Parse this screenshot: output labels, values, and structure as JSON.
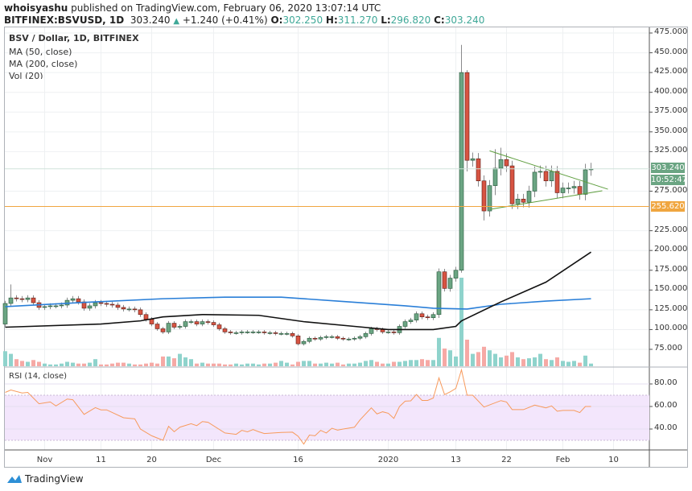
{
  "header": {
    "user": "whoisyashu",
    "published": "published on TradingView.com, February 06, 2020 13:07:14 UTC",
    "symbol": "BITFINEX:BSVUSD, 1D",
    "last": "303.240",
    "change": "+1.240 (+0.41%)",
    "o_label": "O:",
    "o": "302.250",
    "h_label": "H:",
    "h": "311.270",
    "l_label": "L:",
    "l": "296.820",
    "c_label": "C:",
    "c": "303.240"
  },
  "legend": {
    "title": "BSV / Dollar, 1D, BITFINEX",
    "ma50": "MA (50, close)",
    "ma200": "MA (200, close)",
    "vol": "Vol (20)",
    "rsi": "RSI (14, close)"
  },
  "badges": {
    "price": "303.240",
    "countdown": "10:52:47",
    "level": "255.620"
  },
  "footer": {
    "brand": "TradingView"
  },
  "colors": {
    "up": "#6ba583",
    "down": "#d75442",
    "ma50": "#111111",
    "ma200": "#2a7fd8",
    "rsi": "#f79a5c",
    "level": "#f0a640",
    "trendline": "#5e9e3e",
    "rsi_band": "#f3e6fc"
  },
  "chart_data": {
    "type": "candlestick",
    "start_date": "2019-10-25",
    "first_open": 107,
    "closes": [
      133,
      140,
      139,
      138,
      140,
      134,
      128,
      129,
      130,
      130,
      131,
      137,
      139,
      135,
      127,
      130,
      134,
      133,
      132,
      131,
      128,
      126,
      126,
      125,
      119,
      113,
      107,
      101,
      97,
      108,
      103,
      104,
      110,
      110,
      107,
      110,
      109,
      106,
      101,
      97,
      96,
      96,
      97,
      97,
      97,
      97,
      96,
      96,
      95,
      95,
      95,
      92,
      82,
      85,
      89,
      88,
      90,
      91,
      91,
      89,
      88,
      88,
      89,
      91,
      95,
      101,
      100,
      97,
      97,
      96,
      104,
      110,
      112,
      120,
      116,
      115,
      119,
      173,
      152,
      165,
      175,
      425,
      314,
      316,
      288,
      250,
      282,
      304,
      315,
      307,
      259,
      265,
      261,
      275,
      299,
      300,
      288,
      300,
      273,
      279,
      279,
      281,
      271,
      302,
      303.24
    ],
    "wick_extremes": [
      {
        "date": "2019-10-26",
        "high": 157,
        "low": 130
      },
      {
        "date": "2020-01-14",
        "high": 460,
        "low": 172
      },
      {
        "date": "2020-01-15",
        "high": 428,
        "low": 300
      },
      {
        "date": "2020-01-18",
        "high": 295,
        "low": 238
      },
      {
        "date": "2020-01-20",
        "high": 328,
        "low": 270
      },
      {
        "date": "2020-01-21",
        "high": 330,
        "low": 295
      }
    ],
    "volume": [
      17,
      14,
      8,
      6,
      5,
      7,
      5,
      3,
      2,
      2,
      3,
      5,
      4,
      3,
      3,
      4,
      8,
      2,
      2,
      3,
      4,
      4,
      3,
      2,
      2,
      3,
      4,
      3,
      11,
      11,
      9,
      14,
      10,
      8,
      3,
      4,
      3,
      3,
      3,
      2,
      2,
      3,
      2,
      3,
      3,
      2,
      3,
      3,
      4,
      6,
      4,
      2,
      5,
      6,
      6,
      3,
      3,
      4,
      3,
      4,
      2,
      3,
      3,
      4,
      6,
      7,
      5,
      3,
      3,
      5,
      5,
      6,
      7,
      7,
      8,
      7,
      7,
      32,
      20,
      18,
      11,
      100,
      30,
      14,
      16,
      22,
      18,
      14,
      10,
      12,
      16,
      10,
      8,
      9,
      10,
      14,
      8,
      7,
      10,
      6,
      5,
      6,
      4,
      12,
      3
    ],
    "ma50": [
      {
        "date": "2019-10-25",
        "value": 103
      },
      {
        "date": "2019-11-11",
        "value": 107
      },
      {
        "date": "2019-11-18",
        "value": 111
      },
      {
        "date": "2019-11-22",
        "value": 116
      },
      {
        "date": "2019-11-29",
        "value": 119
      },
      {
        "date": "2019-12-09",
        "value": 118
      },
      {
        "date": "2019-12-17",
        "value": 110
      },
      {
        "date": "2019-12-26",
        "value": 104
      },
      {
        "date": "2020-01-01",
        "value": 100
      },
      {
        "date": "2020-01-09",
        "value": 100
      },
      {
        "date": "2020-01-13",
        "value": 104
      },
      {
        "date": "2020-01-14",
        "value": 111
      },
      {
        "date": "2020-01-21",
        "value": 135
      },
      {
        "date": "2020-01-29",
        "value": 160
      },
      {
        "date": "2020-02-06",
        "value": 198
      }
    ],
    "ma200": [
      {
        "date": "2019-10-25",
        "value": 129
      },
      {
        "date": "2019-11-07",
        "value": 134
      },
      {
        "date": "2019-11-22",
        "value": 139
      },
      {
        "date": "2019-12-03",
        "value": 141
      },
      {
        "date": "2019-12-13",
        "value": 141
      },
      {
        "date": "2019-12-23",
        "value": 136
      },
      {
        "date": "2020-01-04",
        "value": 130
      },
      {
        "date": "2020-01-09",
        "value": 127
      },
      {
        "date": "2020-01-15",
        "value": 126
      },
      {
        "date": "2020-01-21",
        "value": 132
      },
      {
        "date": "2020-01-29",
        "value": 136
      },
      {
        "date": "2020-02-06",
        "value": 139
      }
    ],
    "trendlines": [
      {
        "from": {
          "date": "2020-01-19",
          "price": 326
        },
        "to": {
          "date": "2020-02-09",
          "price": 277.5
        }
      },
      {
        "from": {
          "date": "2020-01-19",
          "price": 252
        },
        "to": {
          "date": "2020-02-08",
          "price": 275.5
        }
      }
    ],
    "level_line": 255.62,
    "last_price": 303.24,
    "price_axis": {
      "range": [
        75,
        475
      ],
      "ticks": [
        "475.000",
        "450.000",
        "425.000",
        "400.000",
        "375.000",
        "350.000",
        "325.000",
        "275.000",
        "225.000",
        "200.000",
        "175.000",
        "150.000",
        "125.000",
        "100.000",
        "75.000"
      ]
    },
    "time_axis": [
      {
        "date": "2019-11-01",
        "label": "Nov"
      },
      {
        "date": "2019-11-11",
        "label": "11"
      },
      {
        "date": "2019-11-20",
        "label": "20"
      },
      {
        "date": "2019-12-01",
        "label": "Dec"
      },
      {
        "date": "2019-12-16",
        "label": "16"
      },
      {
        "date": "2020-01-01",
        "label": "2020"
      },
      {
        "date": "2020-01-13",
        "label": "13"
      },
      {
        "date": "2020-01-22",
        "label": "22"
      },
      {
        "date": "2020-02-01",
        "label": "Feb"
      },
      {
        "date": "2020-02-10",
        "label": "10"
      }
    ],
    "rsi": {
      "ticks": [
        "80.00",
        "60.00",
        "40.00"
      ],
      "band": [
        30,
        70
      ],
      "points": [
        {
          "date": "2019-10-25",
          "value": 72.5
        },
        {
          "date": "2019-10-26",
          "value": 74.6
        },
        {
          "date": "2019-10-28",
          "value": 72
        },
        {
          "date": "2019-10-29",
          "value": 72.5
        },
        {
          "date": "2019-10-31",
          "value": 62.4
        },
        {
          "date": "2019-11-02",
          "value": 64
        },
        {
          "date": "2019-11-03",
          "value": 60.5
        },
        {
          "date": "2019-11-05",
          "value": 66.6
        },
        {
          "date": "2019-11-06",
          "value": 66
        },
        {
          "date": "2019-11-08",
          "value": 53
        },
        {
          "date": "2019-11-10",
          "value": 59
        },
        {
          "date": "2019-11-11",
          "value": 57
        },
        {
          "date": "2019-11-12",
          "value": 57
        },
        {
          "date": "2019-11-15",
          "value": 50
        },
        {
          "date": "2019-11-17",
          "value": 49
        },
        {
          "date": "2019-11-18",
          "value": 40
        },
        {
          "date": "2019-11-20",
          "value": 34
        },
        {
          "date": "2019-11-22",
          "value": 30
        },
        {
          "date": "2019-11-23",
          "value": 42.4
        },
        {
          "date": "2019-11-24",
          "value": 37.6
        },
        {
          "date": "2019-11-25",
          "value": 41.6
        },
        {
          "date": "2019-11-27",
          "value": 44.7
        },
        {
          "date": "2019-11-28",
          "value": 43
        },
        {
          "date": "2019-11-29",
          "value": 46.6
        },
        {
          "date": "2019-11-30",
          "value": 46
        },
        {
          "date": "2019-12-03",
          "value": 36.5
        },
        {
          "date": "2019-12-05",
          "value": 35.3
        },
        {
          "date": "2019-12-06",
          "value": 38.8
        },
        {
          "date": "2019-12-07",
          "value": 37.5
        },
        {
          "date": "2019-12-08",
          "value": 39.5
        },
        {
          "date": "2019-12-09",
          "value": 37.6
        },
        {
          "date": "2019-12-10",
          "value": 36
        },
        {
          "date": "2019-12-13",
          "value": 37
        },
        {
          "date": "2019-12-15",
          "value": 37.2
        },
        {
          "date": "2019-12-16",
          "value": 33.6
        },
        {
          "date": "2019-12-17",
          "value": 26.6
        },
        {
          "date": "2019-12-18",
          "value": 34.6
        },
        {
          "date": "2019-12-19",
          "value": 34
        },
        {
          "date": "2019-12-20",
          "value": 38.8
        },
        {
          "date": "2019-12-21",
          "value": 36.5
        },
        {
          "date": "2019-12-22",
          "value": 40.7
        },
        {
          "date": "2019-12-23",
          "value": 39
        },
        {
          "date": "2019-12-24",
          "value": 40
        },
        {
          "date": "2019-12-26",
          "value": 41.6
        },
        {
          "date": "2019-12-27",
          "value": 48.2
        },
        {
          "date": "2019-12-29",
          "value": 58.8
        },
        {
          "date": "2019-12-30",
          "value": 53.4
        },
        {
          "date": "2019-12-31",
          "value": 55.3
        },
        {
          "date": "2020-01-01",
          "value": 54
        },
        {
          "date": "2020-01-02",
          "value": 49.4
        },
        {
          "date": "2020-01-03",
          "value": 60
        },
        {
          "date": "2020-01-04",
          "value": 64.7
        },
        {
          "date": "2020-01-05",
          "value": 65
        },
        {
          "date": "2020-01-06",
          "value": 70.6
        },
        {
          "date": "2020-01-07",
          "value": 65.4
        },
        {
          "date": "2020-01-08",
          "value": 65.4
        },
        {
          "date": "2020-01-09",
          "value": 67.5
        },
        {
          "date": "2020-01-10",
          "value": 85.4
        },
        {
          "date": "2020-01-11",
          "value": 70.6
        },
        {
          "date": "2020-01-12",
          "value": 73
        },
        {
          "date": "2020-01-13",
          "value": 76
        },
        {
          "date": "2020-01-14",
          "value": 92.5
        },
        {
          "date": "2020-01-15",
          "value": 70
        },
        {
          "date": "2020-01-16",
          "value": 70
        },
        {
          "date": "2020-01-18",
          "value": 59.5
        },
        {
          "date": "2020-01-21",
          "value": 65.2
        },
        {
          "date": "2020-01-22",
          "value": 64
        },
        {
          "date": "2020-01-23",
          "value": 57.2
        },
        {
          "date": "2020-01-25",
          "value": 57.2
        },
        {
          "date": "2020-01-27",
          "value": 61.2
        },
        {
          "date": "2020-01-28",
          "value": 60
        },
        {
          "date": "2020-01-29",
          "value": 58.8
        },
        {
          "date": "2020-01-30",
          "value": 60.5
        },
        {
          "date": "2020-01-31",
          "value": 55.8
        },
        {
          "date": "2020-02-01",
          "value": 56.5
        },
        {
          "date": "2020-02-03",
          "value": 56.5
        },
        {
          "date": "2020-02-04",
          "value": 54.6
        },
        {
          "date": "2020-02-05",
          "value": 60
        },
        {
          "date": "2020-02-06",
          "value": 60
        }
      ]
    }
  }
}
